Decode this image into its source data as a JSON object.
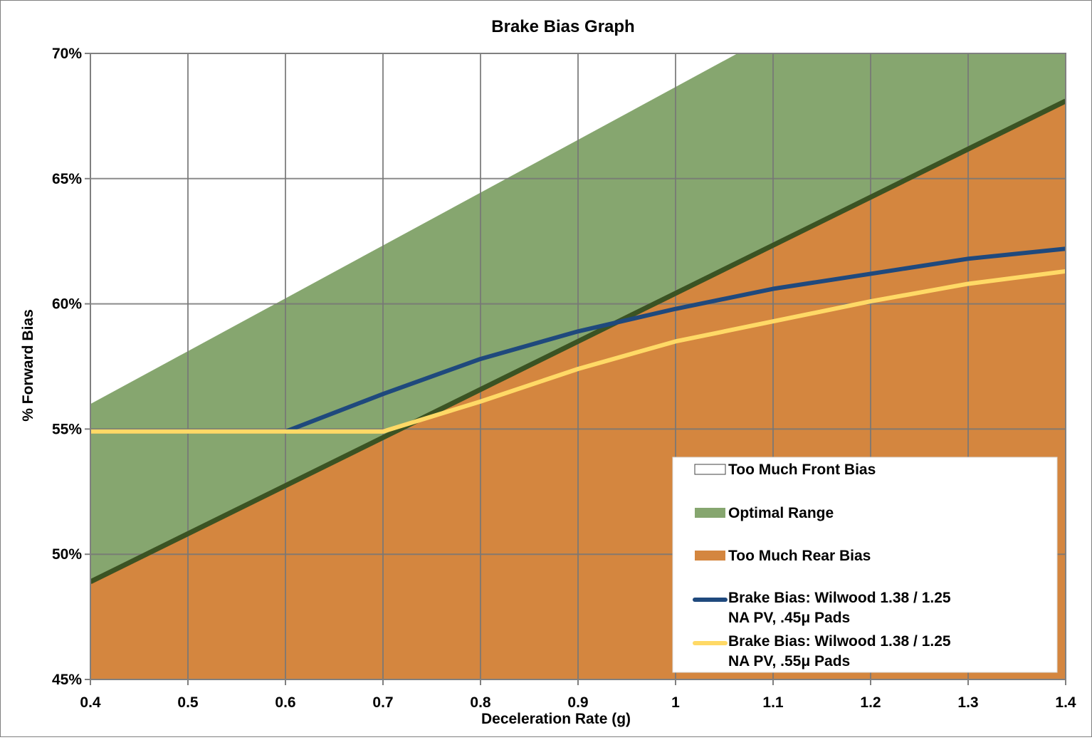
{
  "chart_data": {
    "type": "area",
    "title": "Brake Bias Graph",
    "xlabel": "Deceleration Rate (g)",
    "ylabel": "% Forward Bias",
    "xlim": [
      0.4,
      1.4
    ],
    "ylim": [
      45,
      70
    ],
    "grid": true,
    "legend_position": "bottom-right",
    "x_ticks": [
      "0.4",
      "0.5",
      "0.6",
      "0.7",
      "0.8",
      "0.9",
      "1",
      "1.1",
      "1.2",
      "1.3",
      "1.4"
    ],
    "y_ticks": [
      "45%",
      "50%",
      "55%",
      "60%",
      "65%",
      "70%"
    ],
    "regions": [
      {
        "name": "Too Much Front Bias",
        "color": "#ffffff"
      },
      {
        "name": "Optimal Range",
        "color": "#86a66f",
        "x": [
          0.4,
          1.4
        ],
        "lower": [
          48.9,
          68.1
        ],
        "upper": [
          56.0,
          77.1
        ]
      },
      {
        "name": "Too Much Rear Bias",
        "color": "#d4863f",
        "x": [
          0.4,
          1.4
        ],
        "upper": [
          48.9,
          68.1
        ]
      }
    ],
    "boundary_line": {
      "color": "#3b5323",
      "x": [
        0.4,
        1.4
      ],
      "y": [
        48.9,
        68.1
      ]
    },
    "series": [
      {
        "name": "Brake Bias: Wilwood 1.38 / 1.25 NA PV, .45μ Pads",
        "legend_lines": [
          "Brake Bias: Wilwood 1.38 / 1.25",
          "NA PV, .45μ Pads"
        ],
        "color": "#1f497d",
        "x": [
          0.4,
          0.5,
          0.6,
          0.7,
          0.8,
          0.9,
          1.0,
          1.1,
          1.2,
          1.3,
          1.4
        ],
        "y": [
          54.9,
          54.9,
          54.9,
          56.4,
          57.8,
          58.9,
          59.8,
          60.6,
          61.2,
          61.8,
          62.2
        ]
      },
      {
        "name": "Brake Bias: Wilwood 1.38 / 1.25 NA PV, .55μ Pads",
        "legend_lines": [
          "Brake Bias: Wilwood 1.38 / 1.25",
          "NA PV, .55μ Pads"
        ],
        "color": "#ffd966",
        "x": [
          0.4,
          0.5,
          0.6,
          0.7,
          0.8,
          0.9,
          1.0,
          1.1,
          1.2,
          1.3,
          1.4
        ],
        "y": [
          54.9,
          54.9,
          54.9,
          54.9,
          56.1,
          57.4,
          58.5,
          59.3,
          60.1,
          60.8,
          61.3
        ]
      }
    ]
  }
}
